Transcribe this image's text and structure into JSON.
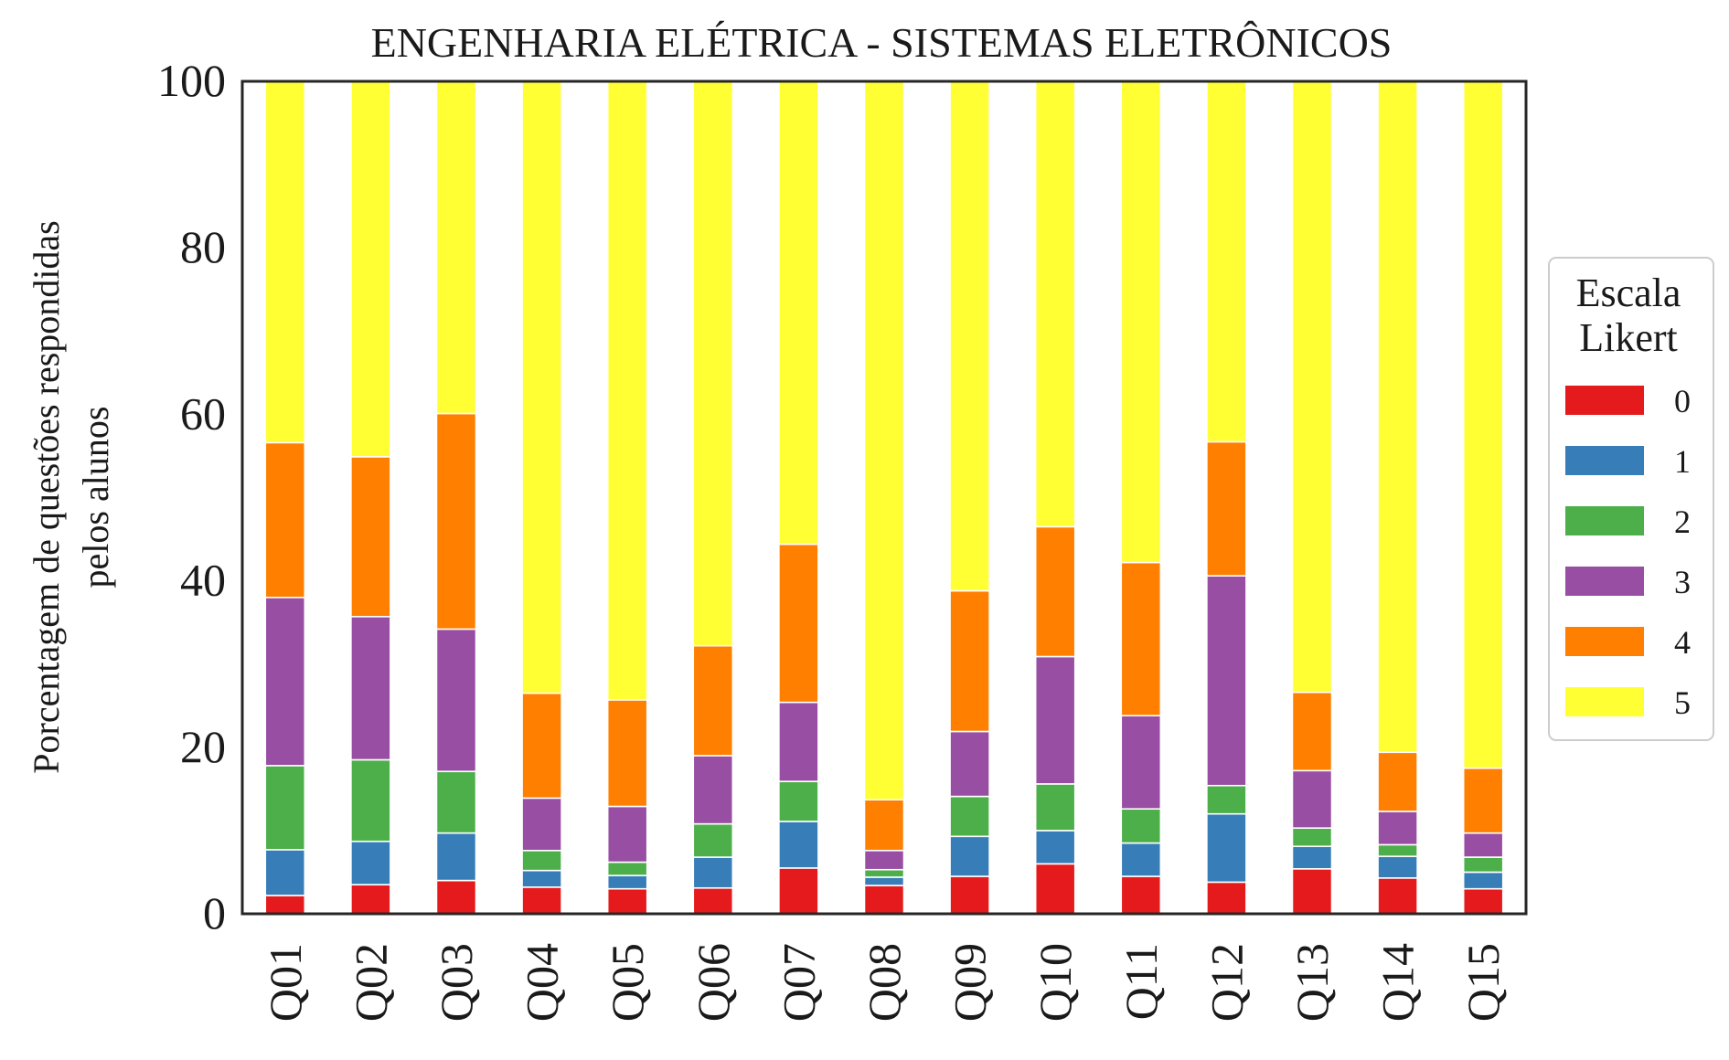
{
  "chart_data": {
    "type": "bar",
    "stacked": true,
    "title": "ENGENHARIA ELÉTRICA - SISTEMAS ELETRÔNICOS",
    "ylabel_lines": [
      "Porcentagem de questões respondidas",
      "pelos alunos"
    ],
    "xlabel": "",
    "ylim": [
      0,
      100
    ],
    "yticks": [
      0,
      20,
      40,
      60,
      80,
      100
    ],
    "grid": false,
    "categories": [
      "Q01",
      "Q02",
      "Q03",
      "Q04",
      "Q05",
      "Q06",
      "Q07",
      "Q08",
      "Q09",
      "Q10",
      "Q11",
      "Q12",
      "Q13",
      "Q14",
      "Q15"
    ],
    "legend": {
      "title_lines": [
        "Escala",
        "Likert"
      ],
      "placement": "right-center"
    },
    "series": [
      {
        "name": "0",
        "color": "#e41a1c",
        "values": [
          2.2,
          3.5,
          4.0,
          3.2,
          3.0,
          3.1,
          5.5,
          3.4,
          4.5,
          6.0,
          4.5,
          3.8,
          5.4,
          4.3,
          3.0
        ]
      },
      {
        "name": "1",
        "color": "#377eb8",
        "values": [
          5.5,
          5.2,
          5.7,
          2.0,
          1.6,
          3.7,
          5.6,
          1.0,
          4.8,
          4.0,
          4.0,
          8.2,
          2.7,
          2.6,
          2.0
        ]
      },
      {
        "name": "2",
        "color": "#4daf4a",
        "values": [
          10.1,
          9.8,
          7.4,
          2.4,
          1.6,
          4.0,
          4.8,
          0.9,
          4.8,
          5.6,
          4.1,
          3.4,
          2.2,
          1.4,
          1.8
        ]
      },
      {
        "name": "3",
        "color": "#984ea3",
        "values": [
          20.2,
          17.2,
          17.1,
          6.3,
          6.7,
          8.2,
          9.5,
          2.3,
          7.8,
          15.3,
          11.2,
          25.2,
          6.9,
          4.0,
          2.9
        ]
      },
      {
        "name": "4",
        "color": "#ff7f00",
        "values": [
          18.6,
          19.2,
          25.9,
          12.6,
          12.8,
          13.2,
          19.0,
          6.1,
          16.9,
          15.6,
          18.4,
          16.1,
          9.4,
          7.1,
          7.8
        ]
      },
      {
        "name": "5",
        "color": "#ffff33",
        "values": [
          43.4,
          45.1,
          39.9,
          73.5,
          74.3,
          67.8,
          55.6,
          86.3,
          61.2,
          53.5,
          57.8,
          43.3,
          73.4,
          80.6,
          82.5
        ]
      }
    ]
  }
}
